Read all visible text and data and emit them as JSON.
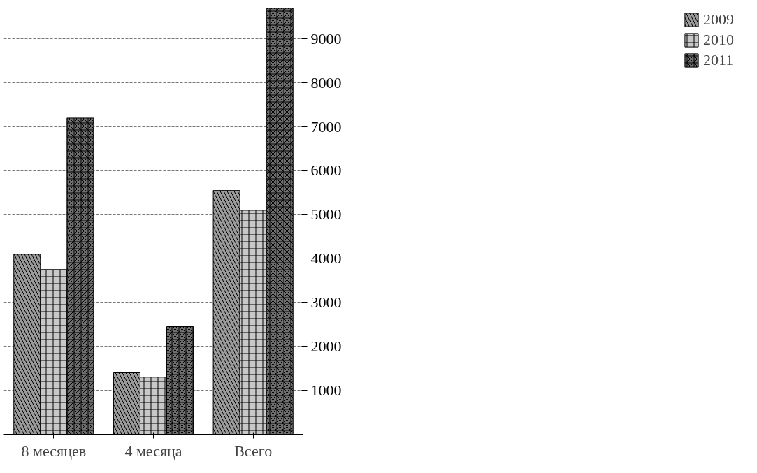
{
  "chart_data": {
    "type": "bar",
    "categories": [
      "8 месяцев",
      "4 месяца",
      "Всего"
    ],
    "series": [
      {
        "name": "2009",
        "color": "#9a9a9a",
        "values": [
          4100,
          1400,
          5550
        ]
      },
      {
        "name": "2010",
        "color": "#c8c8c8",
        "values": [
          3750,
          1300,
          5100
        ]
      },
      {
        "name": "2011",
        "color": "#6e6e6e",
        "values": [
          7200,
          2450,
          9700
        ]
      }
    ],
    "ylim": [
      0,
      9800
    ],
    "yticks": [
      1000,
      2000,
      3000,
      4000,
      5000,
      6000,
      7000,
      8000,
      9000
    ],
    "grid": "y",
    "legend": "right"
  }
}
